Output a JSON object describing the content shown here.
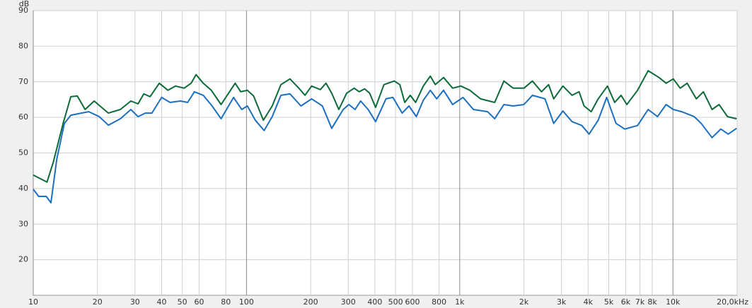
{
  "chart_data": {
    "type": "line",
    "y_label": "dB",
    "xscale": "log",
    "grid": true,
    "xlim": [
      10,
      20000
    ],
    "ylim": [
      10,
      90
    ],
    "yticks": [
      20,
      30,
      40,
      50,
      60,
      70,
      80,
      90
    ],
    "xticks": [
      10,
      20,
      30,
      40,
      50,
      60,
      80,
      100,
      200,
      300,
      400,
      500,
      600,
      800,
      {
        "value": 1000,
        "label": "1k"
      },
      {
        "value": 2000,
        "label": "2k"
      },
      {
        "value": 3000,
        "label": "3k"
      },
      {
        "value": 4000,
        "label": "4k"
      },
      {
        "value": 5000,
        "label": "5k"
      },
      {
        "value": 6000,
        "label": "6k"
      },
      {
        "value": 7000,
        "label": "7k"
      },
      {
        "value": 8000,
        "label": "8k"
      },
      {
        "value": 10000,
        "label": "10k"
      },
      {
        "value": 20000,
        "label": "20,0kHz"
      }
    ],
    "series": [
      {
        "color": "#0b6b38",
        "x": [
          10,
          11.6,
          12.4,
          13.8,
          15,
          16.1,
          17.5,
          19.3,
          22.5,
          25.6,
          28.7,
          31,
          33,
          35.3,
          39,
          42.8,
          46.5,
          51,
          55,
          58,
          62.7,
          68.4,
          76,
          88.5,
          94,
          101,
          108,
          120,
          132,
          145,
          160,
          176,
          188,
          202,
          222,
          236,
          251,
          271,
          295,
          320,
          338,
          358,
          378,
          403,
          441,
          493,
          524,
          552,
          586,
          621,
          675,
          728,
          768,
          840,
          926,
          1013,
          1116,
          1251,
          1459,
          1611,
          1781,
          2000,
          2193,
          2418,
          2612,
          2760,
          3047,
          3363,
          3630,
          3830,
          4135,
          4460,
          4930,
          5330,
          5710,
          6080,
          6820,
          7650,
          8600,
          9290,
          10030,
          10810,
          11650,
          12870,
          13890,
          15250,
          16450,
          18020,
          19880
        ],
        "values": [
          43.8,
          41.8,
          47.3,
          58.3,
          65.8,
          66,
          62.2,
          64.6,
          61.2,
          62.2,
          64.6,
          63.8,
          66.6,
          65.8,
          69.6,
          67.6,
          68.8,
          68.2,
          69.6,
          72,
          69.6,
          67.6,
          63.6,
          69.6,
          67.2,
          67.6,
          66,
          59.2,
          63.2,
          69.2,
          70.8,
          68.2,
          66.2,
          68.8,
          67.8,
          69.6,
          66.8,
          62.2,
          66.8,
          68.2,
          67.2,
          68,
          66.8,
          62.8,
          69.2,
          70.2,
          69.2,
          64.2,
          66.2,
          64.2,
          68.8,
          71.6,
          69.2,
          71.2,
          68.2,
          68.8,
          67.6,
          65.2,
          64.2,
          70.2,
          68.2,
          68.2,
          70.2,
          67.2,
          69.2,
          65.2,
          68.8,
          66.2,
          67.2,
          63.2,
          61.6,
          65.2,
          68.8,
          64.2,
          66.2,
          63.6,
          67.6,
          73.1,
          71.2,
          69.6,
          70.8,
          68.2,
          69.6,
          65.2,
          67.2,
          62.2,
          63.6,
          60.2,
          59.6
        ]
      },
      {
        "color": "#1a6fc0",
        "x": [
          10,
          10.6,
          11.5,
          12.1,
          12.9,
          14,
          15,
          16.8,
          18.2,
          20.4,
          22.5,
          25.6,
          28.7,
          31,
          33.5,
          36,
          40,
          43.8,
          49,
          53,
          57,
          62.7,
          69,
          76,
          87,
          95,
          101,
          110,
          121,
          132,
          145,
          160,
          180,
          202,
          227,
          251,
          284,
          302,
          323,
          343,
          372,
          403,
          451,
          486,
          537,
          578,
          626,
          675,
          728,
          780,
          840,
          926,
          1036,
          1159,
          1351,
          1459,
          1611,
          1781,
          2000,
          2193,
          2512,
          2760,
          3047,
          3363,
          3740,
          4043,
          4460,
          4890,
          5410,
          5940,
          6820,
          7650,
          8460,
          9290,
          10030,
          10980,
          12580,
          13570,
          15250,
          16760,
          18160,
          19880
        ],
        "values": [
          39.8,
          37.8,
          37.8,
          36,
          48.3,
          58.3,
          60.6,
          61.2,
          61.6,
          60.2,
          57.8,
          59.6,
          62.2,
          60.2,
          61.2,
          61.2,
          65.6,
          64.2,
          64.6,
          64.2,
          67.2,
          66.2,
          63.2,
          59.6,
          65.6,
          62.2,
          63.2,
          59.2,
          56.3,
          60.2,
          66.2,
          66.6,
          63.2,
          65.2,
          63.2,
          56.9,
          62.2,
          63.6,
          62.2,
          64.6,
          62.2,
          58.8,
          65.2,
          65.6,
          61.2,
          63.2,
          60.2,
          64.8,
          67.6,
          65.2,
          67.6,
          63.6,
          65.6,
          62.2,
          61.6,
          59.6,
          63.6,
          63.2,
          63.6,
          66.2,
          65.2,
          58.3,
          61.8,
          58.8,
          57.7,
          55.3,
          59.2,
          65.6,
          58.3,
          56.7,
          57.7,
          62.2,
          60.2,
          63.6,
          62.2,
          61.6,
          60.2,
          58.3,
          54.3,
          56.7,
          55.3,
          56.9
        ]
      }
    ]
  }
}
